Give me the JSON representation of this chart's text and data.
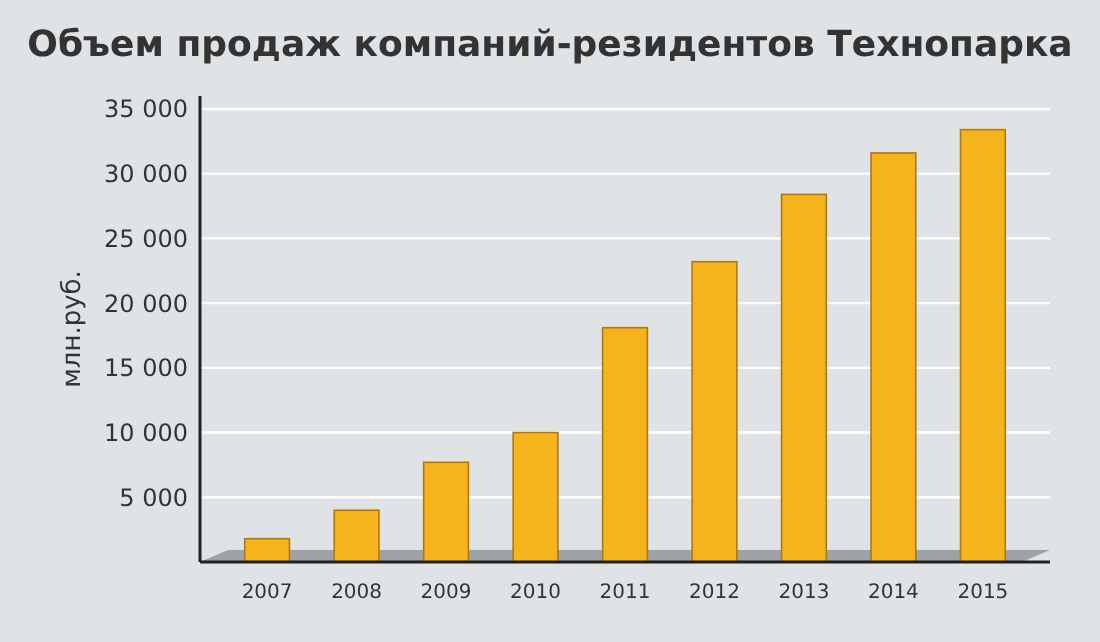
{
  "chart_data": {
    "type": "bar",
    "title": "Объем продаж компаний-резидентов Технопарка",
    "ylabel": "млн.руб.",
    "categories": [
      "2007",
      "2008",
      "2009",
      "2010",
      "2011",
      "2012",
      "2013",
      "2014",
      "2015"
    ],
    "values": [
      1800,
      4000,
      7700,
      10000,
      18100,
      23200,
      28400,
      31600,
      33400
    ],
    "color": "#f5b31c",
    "ylim": [
      0,
      36000
    ],
    "yticks": [
      {
        "value": 5000,
        "label": "5 000"
      },
      {
        "value": 10000,
        "label": "10 000"
      },
      {
        "value": 15000,
        "label": "15 000"
      },
      {
        "value": 20000,
        "label": "20 000"
      },
      {
        "value": 25000,
        "label": "25 000"
      },
      {
        "value": 30000,
        "label": "30 000"
      },
      {
        "value": 35000,
        "label": "35 000"
      }
    ],
    "grid": "y"
  }
}
